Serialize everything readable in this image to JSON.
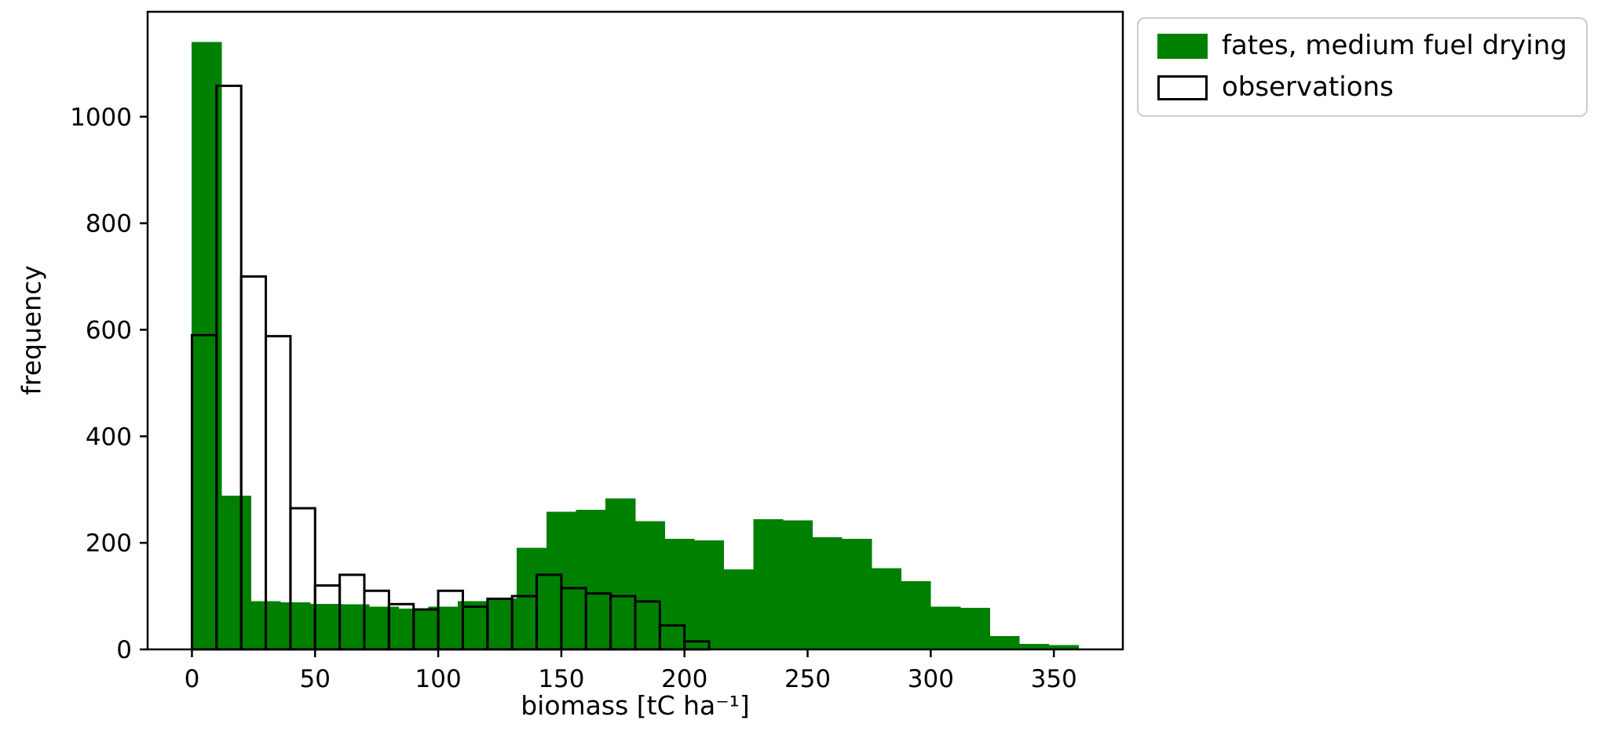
{
  "chart_data": {
    "type": "bar",
    "subtype": "histogram",
    "title": "",
    "xlabel": "biomass [tC ha⁻¹]",
    "ylabel": "frequency",
    "xlim": [
      -18,
      378
    ],
    "ylim": [
      0,
      1197
    ],
    "xticks": [
      0,
      50,
      100,
      150,
      200,
      250,
      300,
      350
    ],
    "yticks": [
      0,
      200,
      400,
      600,
      800,
      1000
    ],
    "grid": false,
    "frame": true,
    "legend_position": "upper right, outside axes",
    "series": [
      {
        "name": "fates, medium fuel drying",
        "style": "filled",
        "color": "#008000",
        "bin_start": 0,
        "bin_width": 12,
        "values": [
          1140,
          288,
          90,
          88,
          85,
          84,
          80,
          76,
          80,
          90,
          95,
          190,
          258,
          262,
          283,
          240,
          207,
          204,
          150,
          244,
          242,
          210,
          207,
          152,
          128,
          80,
          78,
          25,
          10,
          8
        ]
      },
      {
        "name": "observations",
        "style": "outline",
        "color": "#000000",
        "bin_start": 0,
        "bin_width": 10,
        "values": [
          590,
          1058,
          700,
          588,
          265,
          120,
          140,
          110,
          85,
          75,
          110,
          80,
          95,
          100,
          140,
          115,
          105,
          100,
          90,
          45,
          15
        ]
      }
    ]
  }
}
